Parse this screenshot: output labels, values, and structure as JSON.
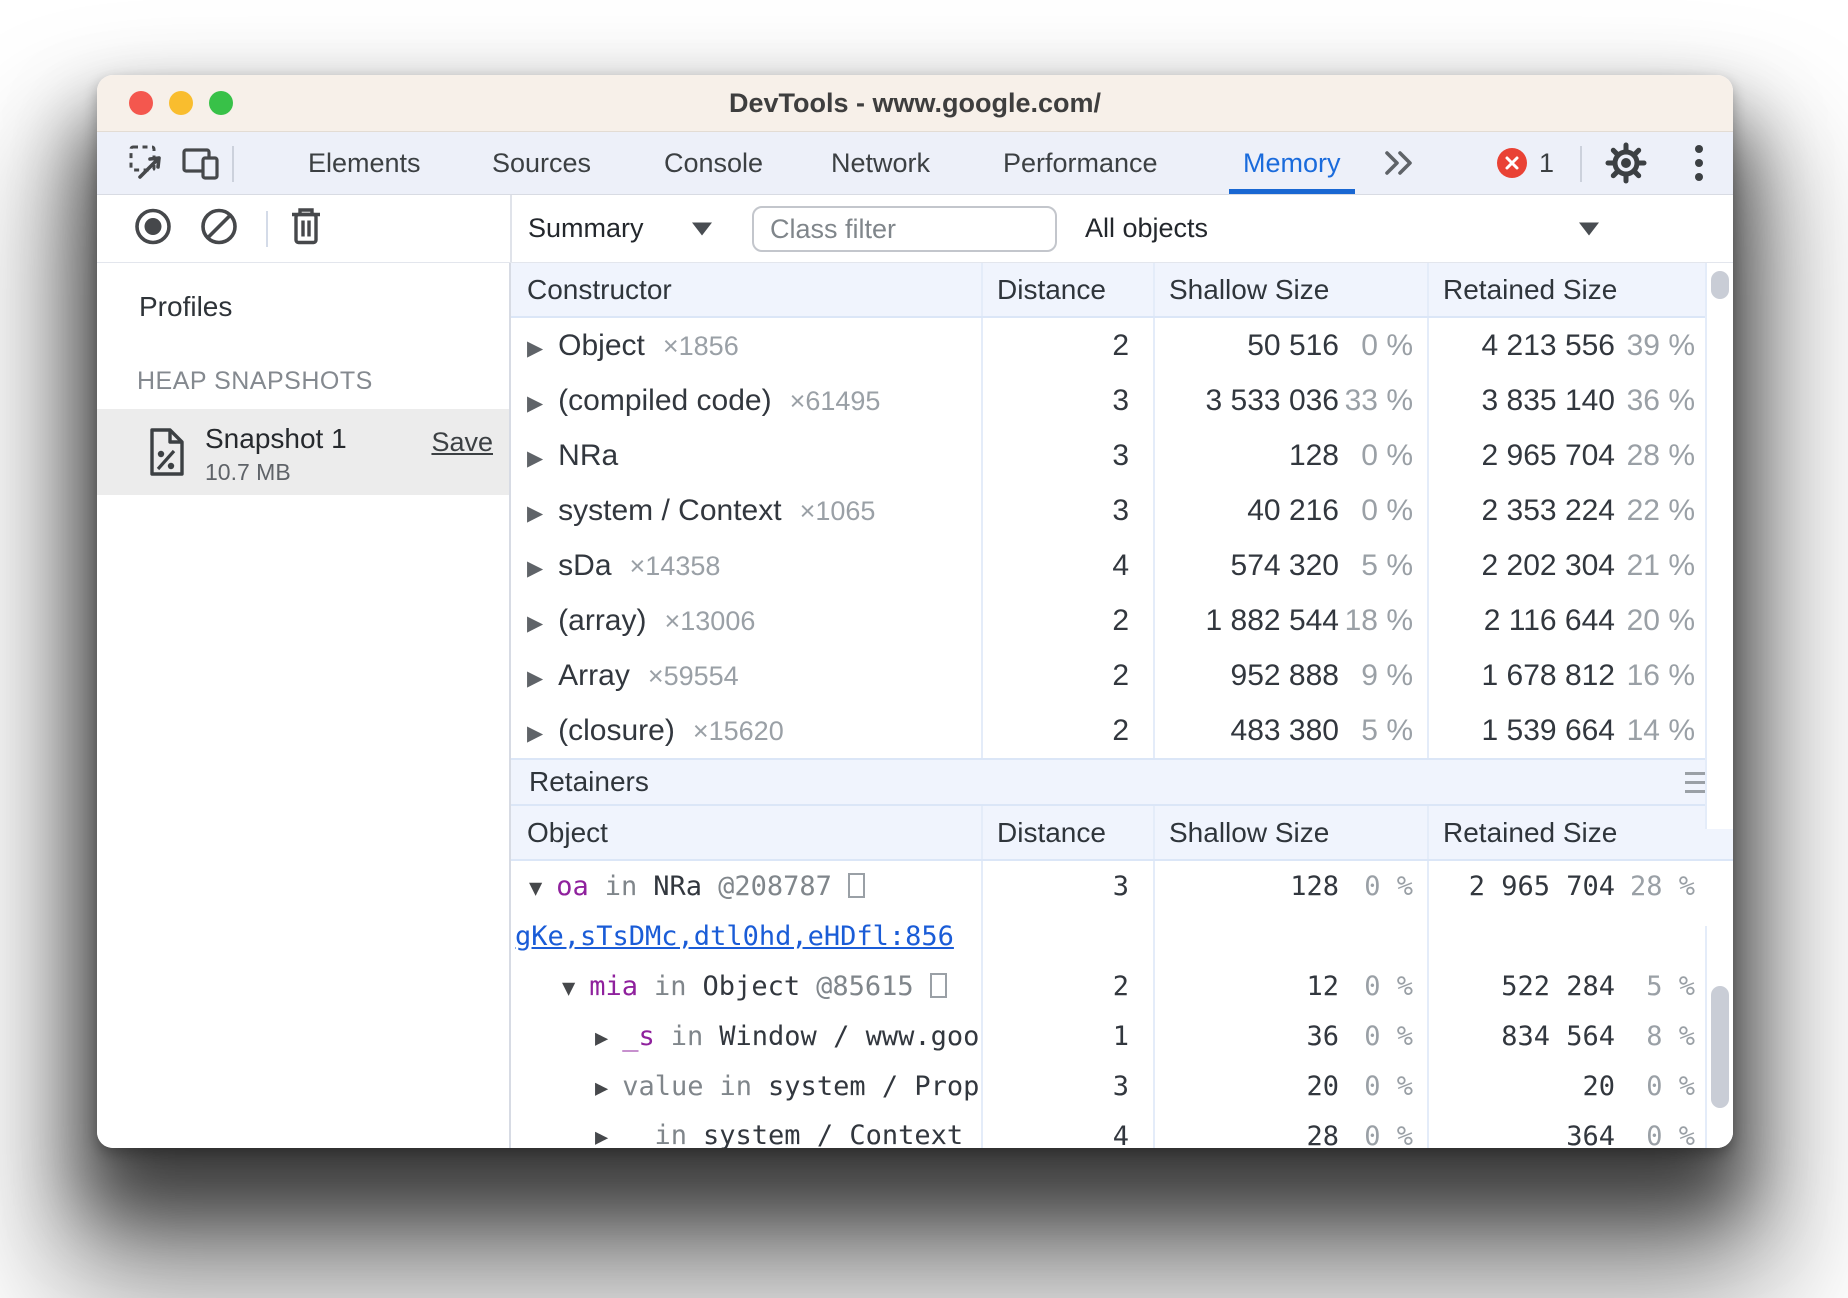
{
  "window": {
    "title": "DevTools - www.google.com/"
  },
  "tab_bar": {
    "tabs": [
      "Elements",
      "Sources",
      "Console",
      "Network",
      "Performance",
      "Memory"
    ],
    "selected_tab": "Memory",
    "error_badge_count": "1"
  },
  "toolbar": {
    "view_select_value": "Summary",
    "class_filter_placeholder": "Class filter",
    "scope_select_value": "All objects"
  },
  "sidebar": {
    "title": "Profiles",
    "section_label": "HEAP SNAPSHOTS",
    "snapshot_name": "Snapshot 1",
    "snapshot_size": "10.7 MB",
    "save_label": "Save"
  },
  "constructors_table": {
    "columns": [
      "Constructor",
      "Distance",
      "Shallow Size",
      "Retained Size"
    ],
    "rows": [
      {
        "name": "Object",
        "count": "×1856",
        "distance": "2",
        "shallow": "50 516",
        "shallow_pct": "0 %",
        "retained": "4 213 556",
        "retained_pct": "39 %"
      },
      {
        "name": "(compiled code)",
        "count": "×61495",
        "distance": "3",
        "shallow": "3 533 036",
        "shallow_pct": "33 %",
        "retained": "3 835 140",
        "retained_pct": "36 %"
      },
      {
        "name": "NRa",
        "count": "",
        "distance": "3",
        "shallow": "128",
        "shallow_pct": "0 %",
        "retained": "2 965 704",
        "retained_pct": "28 %"
      },
      {
        "name": "system / Context",
        "count": "×1065",
        "distance": "3",
        "shallow": "40 216",
        "shallow_pct": "0 %",
        "retained": "2 353 224",
        "retained_pct": "22 %"
      },
      {
        "name": "sDa",
        "count": "×14358",
        "distance": "4",
        "shallow": "574 320",
        "shallow_pct": "5 %",
        "retained": "2 202 304",
        "retained_pct": "21 %"
      },
      {
        "name": "(array)",
        "count": "×13006",
        "distance": "2",
        "shallow": "1 882 544",
        "shallow_pct": "18 %",
        "retained": "2 116 644",
        "retained_pct": "20 %"
      },
      {
        "name": "Array",
        "count": "×59554",
        "distance": "2",
        "shallow": "952 888",
        "shallow_pct": "9 %",
        "retained": "1 678 812",
        "retained_pct": "16 %"
      },
      {
        "name": "(closure)",
        "count": "×15620",
        "distance": "2",
        "shallow": "483 380",
        "shallow_pct": "5 %",
        "retained": "1 539 664",
        "retained_pct": "14 %"
      }
    ]
  },
  "retainers_table": {
    "title": "Retainers",
    "columns": [
      "Object",
      "Distance",
      "Shallow Size",
      "Retained Size"
    ],
    "in_word": "in",
    "rows": [
      {
        "type": "node",
        "arrow": "▼",
        "indent": 0,
        "prop": "oa",
        "prop_style": "purple",
        "target": "NRa",
        "addr": "@208787",
        "box": true,
        "distance": "3",
        "shallow": "128",
        "shallow_pct": "0 %",
        "retained": "2 965 704",
        "retained_pct": "28 %"
      },
      {
        "type": "link",
        "text": "gKe,sTsDMc,dtl0hd,eHDfl:856"
      },
      {
        "type": "node",
        "arrow": "▼",
        "indent": 1,
        "prop": "mia",
        "prop_style": "purple",
        "target": "Object",
        "addr": "@85615",
        "box": true,
        "distance": "2",
        "shallow": "12",
        "shallow_pct": "0 %",
        "retained": "522 284",
        "retained_pct": "5 %"
      },
      {
        "type": "node",
        "arrow": "▶",
        "indent": 2,
        "prop": "_s",
        "prop_style": "purple",
        "target": "Window / www.goog",
        "addr": "",
        "box": false,
        "distance": "1",
        "shallow": "36",
        "shallow_pct": "0 %",
        "retained": "834 564",
        "retained_pct": "8 %"
      },
      {
        "type": "node",
        "arrow": "▶",
        "indent": 2,
        "prop": "value",
        "prop_style": "gray",
        "target": "system / Prop",
        "addr": "",
        "box": false,
        "distance": "3",
        "shallow": "20",
        "shallow_pct": "0 %",
        "retained": "20",
        "retained_pct": "0 %"
      },
      {
        "type": "node",
        "arrow": "▶",
        "indent": 2,
        "prop": "_",
        "prop_style": "underscore",
        "target": "system / Context",
        "addr": "",
        "box": false,
        "distance": "4",
        "shallow": "28",
        "shallow_pct": "0 %",
        "retained": "364",
        "retained_pct": "0 %"
      }
    ]
  }
}
